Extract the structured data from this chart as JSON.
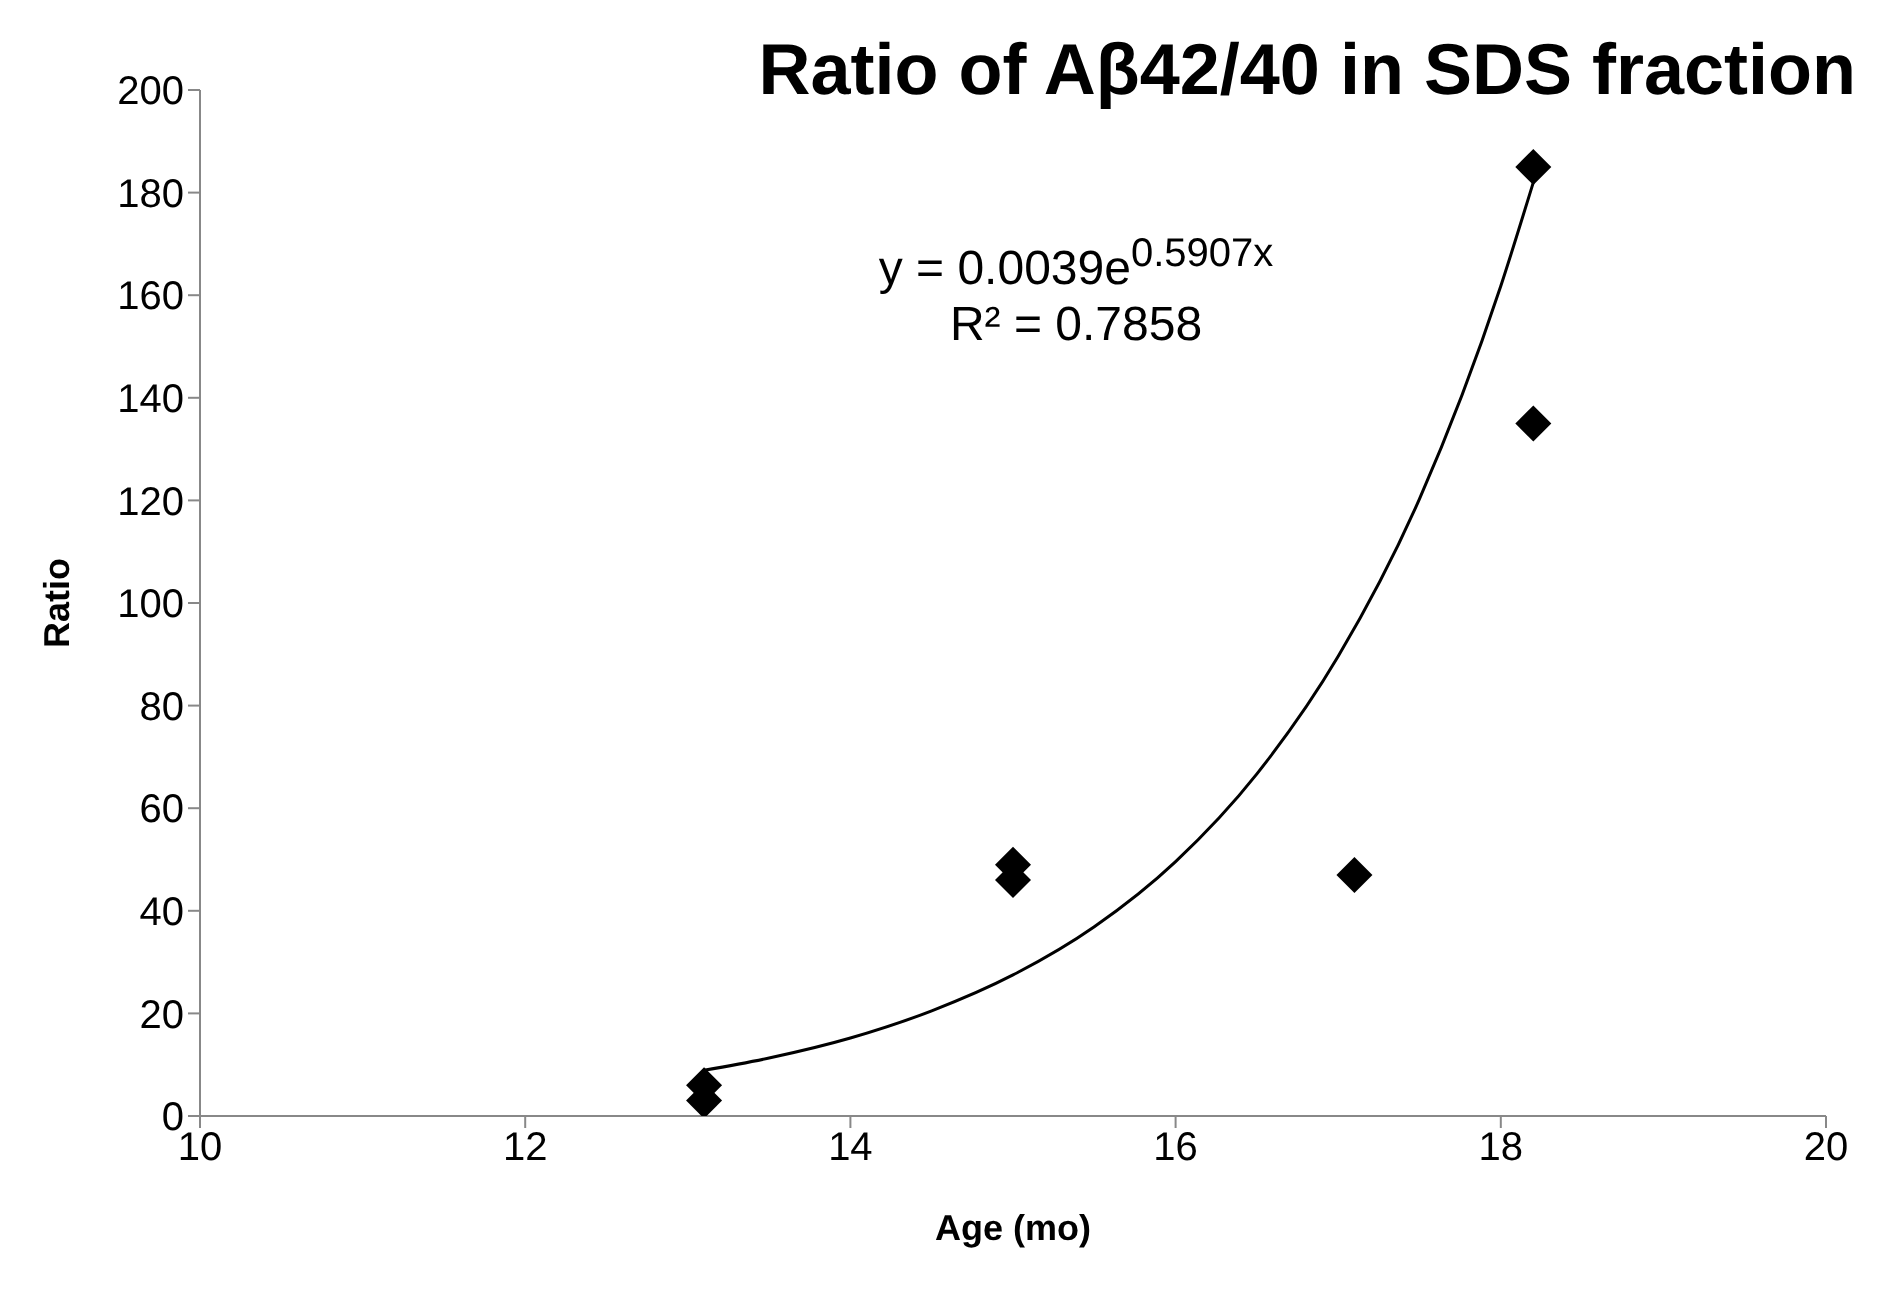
{
  "chart_data": {
    "type": "scatter",
    "title": "Ratio of Aβ42/40 in SDS fraction",
    "xlabel": "Age (mo)",
    "ylabel": "Ratio",
    "xlim": [
      10,
      20
    ],
    "xticks": [
      10,
      12,
      14,
      16,
      18,
      20
    ],
    "ylim": [
      0,
      200
    ],
    "yticks": [
      0,
      20,
      40,
      60,
      80,
      100,
      120,
      140,
      160,
      180,
      200
    ],
    "grid": false,
    "legend": false,
    "marker": "diamond",
    "annotations": [
      "y = 0.0039e$^{0.5907x}$",
      "R² = 0.7858"
    ],
    "series": [
      {
        "color": "#000000",
        "x": [
          13.1,
          13.1,
          15,
          15,
          17.1,
          18.2,
          18.2
        ],
        "values": [
          3,
          6,
          46,
          49,
          47,
          135,
          185
        ]
      },
      {
        "type": "line",
        "color": "#000000",
        "marker": "none",
        "line_style": "solid",
        "x": [
          13.1,
          13.5,
          14,
          14.5,
          15,
          15.5,
          16,
          16.5,
          17,
          17.5,
          18,
          18.2
        ],
        "values": [
          8.9,
          11.3,
          15.2,
          20.5,
          27.5,
          36.9,
          49.6,
          66.7,
          89.6,
          120.3,
          161.8,
          182
        ]
      }
    ]
  }
}
